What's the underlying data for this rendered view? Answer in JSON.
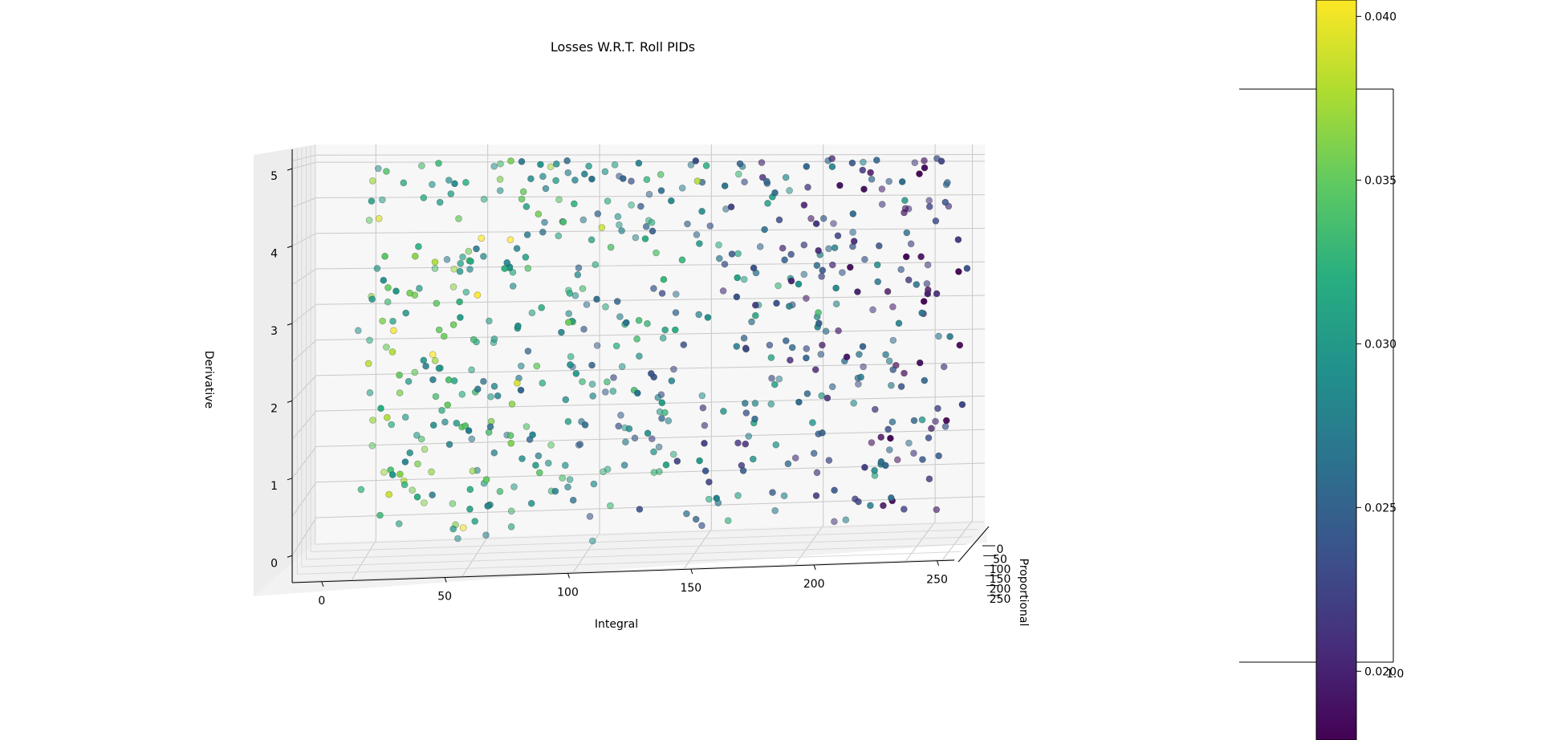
{
  "chart_data": {
    "type": "scatter",
    "title": "Losses W.R.T. Roll PIDs",
    "xlabel": "Integral",
    "ylabel": "Proportional",
    "zlabel": "Derivative",
    "x_ticks": [
      "0",
      "50",
      "100",
      "150",
      "200",
      "250"
    ],
    "y_ticks": [
      "0",
      "50",
      "100",
      "150",
      "200",
      "250"
    ],
    "z_ticks": [
      "0",
      "1",
      "2",
      "3",
      "4",
      "5"
    ],
    "xlim": [
      -12,
      257
    ],
    "ylim": [
      -12,
      257
    ],
    "zlim": [
      -0.35,
      5.25
    ],
    "x_levels": [
      12,
      57,
      102,
      147,
      192,
      237,
      252
    ],
    "z_levels": [
      0,
      0.5,
      1,
      1.5,
      2,
      2.5,
      3,
      3.5,
      4,
      4.5,
      5,
      5.1
    ],
    "colormap": "viridis",
    "colorbar": {
      "ticks": [
        "0.020",
        "0.025",
        "0.030",
        "0.035",
        "0.040"
      ],
      "tick_values": [
        0.02,
        0.025,
        0.03,
        0.035,
        0.04
      ],
      "range": [
        0.0179,
        0.0405
      ],
      "edge_label": "1.0"
    },
    "point_count": 620,
    "grid": true,
    "projection": "3d",
    "view": "front, Integral left-to-right, Proportional into depth"
  }
}
